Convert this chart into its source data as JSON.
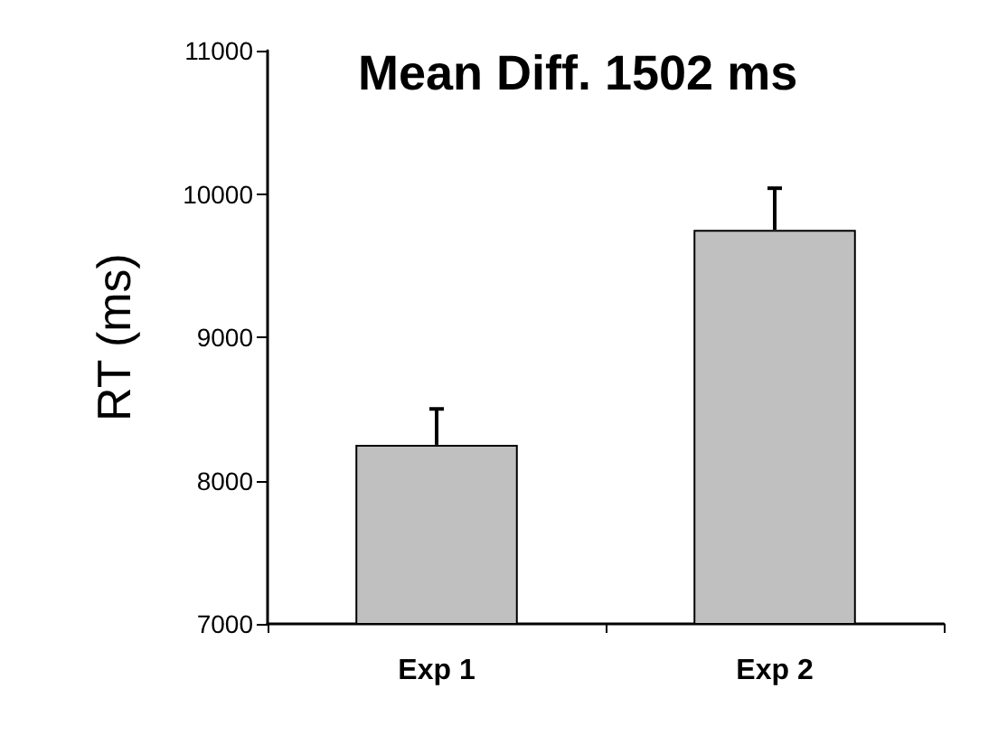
{
  "chart_data": {
    "type": "bar",
    "title": "Mean Diff. 1502 ms",
    "ylabel": "RT (ms)",
    "categories": [
      "Exp 1",
      "Exp 2"
    ],
    "values": [
      8250,
      9750
    ],
    "errors": [
      [
        8250,
        8500
      ],
      [
        9750,
        10040
      ]
    ],
    "color": "#c0c0c0",
    "ylim": [
      7000,
      11000
    ],
    "yticks": [
      7000,
      8000,
      9000,
      10000,
      11000
    ],
    "grid": false
  }
}
